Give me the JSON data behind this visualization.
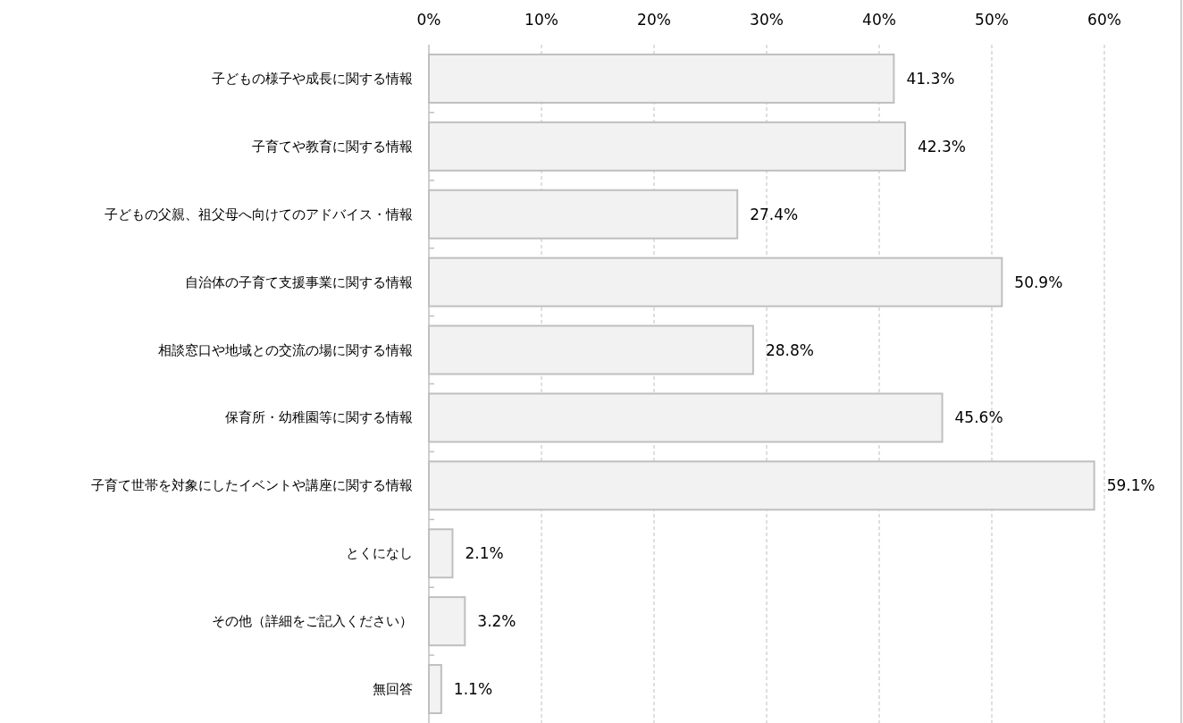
{
  "chart_data": {
    "type": "bar",
    "orientation": "horizontal",
    "color": "#f2f2f2",
    "grid": "x",
    "categories": [
      "子どもの様子や成長に関する情報",
      "子育てや教育に関する情報",
      "子どもの父親、祖父母へ向けてのアドバイス・情報",
      "自治体の子育て支援事業に関する情報",
      "相談窓口や地域との交流の場に関する情報",
      "保育所・幼稚園等に関する情報",
      "子育て世帯を対象にしたイベントや講座に関する情報",
      "とくになし",
      "その他（詳細をご記入ください）",
      "無回答"
    ],
    "values": [
      41.3,
      42.3,
      27.4,
      50.9,
      28.8,
      45.6,
      59.1,
      2.1,
      3.2,
      1.1
    ],
    "value_labels": [
      "41.3%",
      "42.3%",
      "27.4%",
      "50.9%",
      "28.8%",
      "45.6%",
      "59.1%",
      "2.1%",
      "3.2%",
      "1.1%"
    ],
    "xlim": [
      0,
      60
    ],
    "xticks": [
      {
        "value": 0,
        "label": "0%"
      },
      {
        "value": 10,
        "label": "10%"
      },
      {
        "value": 20,
        "label": "20%"
      },
      {
        "value": 30,
        "label": "30%"
      },
      {
        "value": 40,
        "label": "40%"
      },
      {
        "value": 50,
        "label": "50%"
      },
      {
        "value": 60,
        "label": "60%"
      }
    ]
  }
}
